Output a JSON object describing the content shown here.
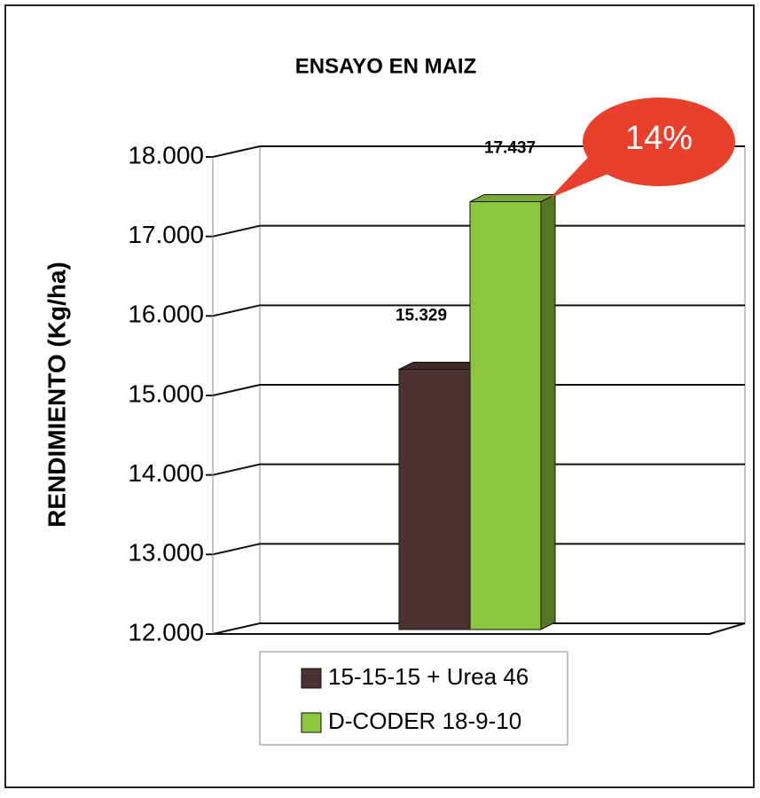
{
  "chart_data": {
    "type": "bar3d",
    "title": "ENSAYO EN MAIZ",
    "y_label": "RENDIMIENTO (Kg/ha)",
    "categories": [
      null
    ],
    "series": [
      {
        "name": "15-15-15 + Urea 46",
        "color": "#4b3131",
        "values": [
          15329
        ],
        "value_labels": [
          "15.329"
        ]
      },
      {
        "name": "D-CODER 18-9-10",
        "color": "#8cc63f",
        "values": [
          17437
        ],
        "value_labels": [
          "17.437"
        ]
      }
    ],
    "ylim": [
      12000,
      18000
    ],
    "yticks": [
      {
        "value": 12000,
        "label": "12.000"
      },
      {
        "value": 13000,
        "label": "13.000"
      },
      {
        "value": 14000,
        "label": "14.000"
      },
      {
        "value": 15000,
        "label": "15.000"
      },
      {
        "value": 16000,
        "label": "16.000"
      },
      {
        "value": 17000,
        "label": "17.000"
      },
      {
        "value": 18000,
        "label": "18.000"
      }
    ],
    "grid": true,
    "annotation": "14%",
    "annotation_color": "#e8402a"
  }
}
